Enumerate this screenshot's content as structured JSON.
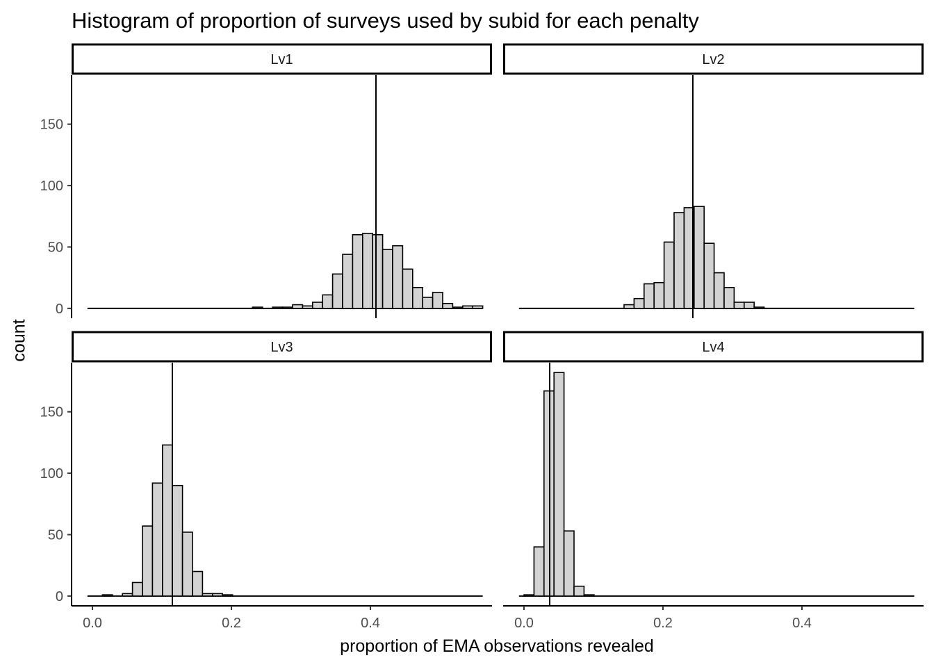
{
  "chart_data": {
    "type": "bar",
    "title": "Histogram of proportion of surveys used by subid for each penalty",
    "xlabel": "proportion of EMA observations revealed",
    "ylabel": "count",
    "xlim": [
      -0.03,
      0.575
    ],
    "ylim": [
      -8,
      190
    ],
    "x_ticks": [
      0.0,
      0.2,
      0.4
    ],
    "x_tick_labels": [
      "0.0",
      "0.2",
      "0.4"
    ],
    "y_ticks": [
      0,
      50,
      100,
      150
    ],
    "y_tick_labels": [
      "0",
      "50",
      "100",
      "150"
    ],
    "bin_width": 0.0144,
    "range": [
      -0.0072,
      0.5616
    ],
    "grid": false,
    "panels": [
      {
        "label": "Lv1",
        "mean": 0.408,
        "bins": [
          {
            "x": 0.2376,
            "count": 1
          },
          {
            "x": 0.2664,
            "count": 1
          },
          {
            "x": 0.2808,
            "count": 1
          },
          {
            "x": 0.2952,
            "count": 3
          },
          {
            "x": 0.3096,
            "count": 2
          },
          {
            "x": 0.324,
            "count": 5
          },
          {
            "x": 0.3384,
            "count": 11
          },
          {
            "x": 0.3528,
            "count": 28
          },
          {
            "x": 0.3672,
            "count": 44
          },
          {
            "x": 0.3816,
            "count": 60
          },
          {
            "x": 0.396,
            "count": 61
          },
          {
            "x": 0.4104,
            "count": 60
          },
          {
            "x": 0.4248,
            "count": 48
          },
          {
            "x": 0.4392,
            "count": 51
          },
          {
            "x": 0.4536,
            "count": 32
          },
          {
            "x": 0.468,
            "count": 17
          },
          {
            "x": 0.4824,
            "count": 9
          },
          {
            "x": 0.4968,
            "count": 13
          },
          {
            "x": 0.5112,
            "count": 4
          },
          {
            "x": 0.5256,
            "count": 1
          },
          {
            "x": 0.54,
            "count": 2
          },
          {
            "x": 0.5544,
            "count": 2
          }
        ]
      },
      {
        "label": "Lv2",
        "mean": 0.243,
        "bins": [
          {
            "x": 0.1512,
            "count": 3
          },
          {
            "x": 0.1656,
            "count": 8
          },
          {
            "x": 0.18,
            "count": 20
          },
          {
            "x": 0.1944,
            "count": 21
          },
          {
            "x": 0.2088,
            "count": 54
          },
          {
            "x": 0.2232,
            "count": 78
          },
          {
            "x": 0.2376,
            "count": 82
          },
          {
            "x": 0.252,
            "count": 83
          },
          {
            "x": 0.2664,
            "count": 53
          },
          {
            "x": 0.2808,
            "count": 29
          },
          {
            "x": 0.2952,
            "count": 17
          },
          {
            "x": 0.3096,
            "count": 5
          },
          {
            "x": 0.324,
            "count": 5
          },
          {
            "x": 0.3384,
            "count": 1
          }
        ]
      },
      {
        "label": "Lv3",
        "mean": 0.115,
        "bins": [
          {
            "x": 0.0216,
            "count": 1
          },
          {
            "x": 0.0504,
            "count": 2
          },
          {
            "x": 0.0648,
            "count": 11
          },
          {
            "x": 0.0792,
            "count": 57
          },
          {
            "x": 0.0936,
            "count": 92
          },
          {
            "x": 0.108,
            "count": 123
          },
          {
            "x": 0.1224,
            "count": 90
          },
          {
            "x": 0.1368,
            "count": 52
          },
          {
            "x": 0.1512,
            "count": 20
          },
          {
            "x": 0.1656,
            "count": 2
          },
          {
            "x": 0.18,
            "count": 2
          },
          {
            "x": 0.1944,
            "count": 1
          }
        ]
      },
      {
        "label": "Lv4",
        "mean": 0.037,
        "bins": [
          {
            "x": 0.0072,
            "count": 1
          },
          {
            "x": 0.0216,
            "count": 40
          },
          {
            "x": 0.036,
            "count": 167
          },
          {
            "x": 0.0504,
            "count": 182
          },
          {
            "x": 0.0648,
            "count": 53
          },
          {
            "x": 0.0792,
            "count": 8
          },
          {
            "x": 0.0936,
            "count": 1
          }
        ]
      }
    ]
  }
}
